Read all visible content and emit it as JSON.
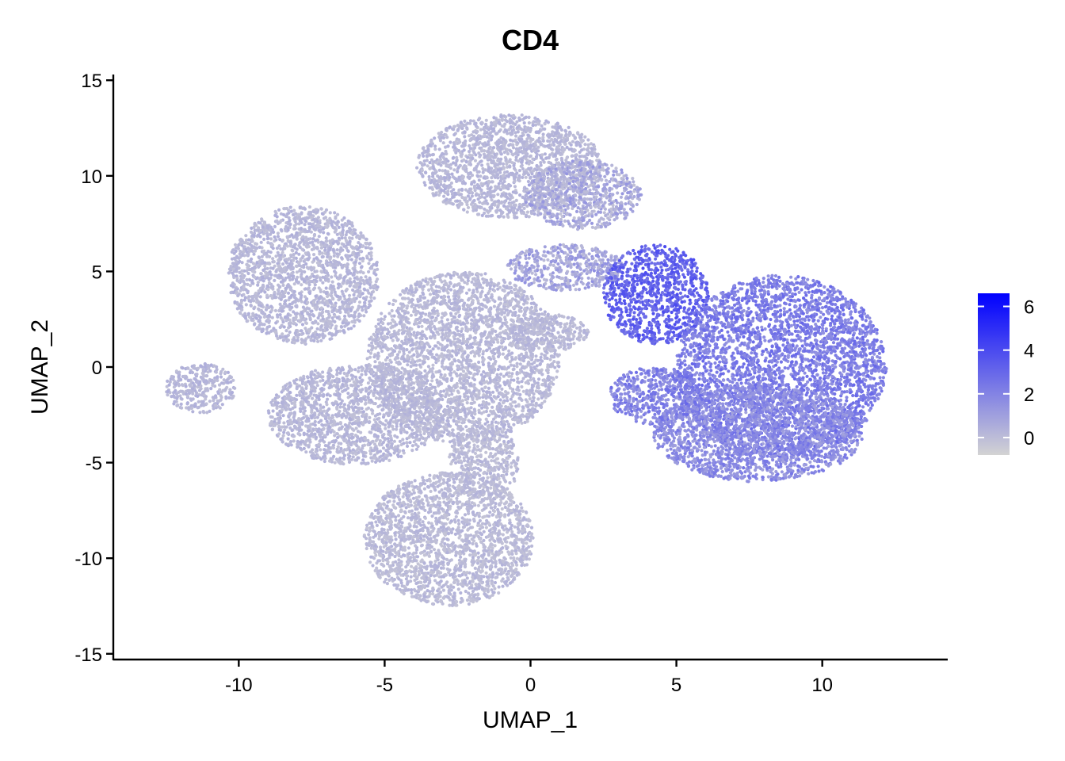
{
  "chart_data": {
    "type": "scatter",
    "title": "CD4",
    "xlabel": "UMAP_1",
    "ylabel": "UMAP_2",
    "xlim": [
      -14.3,
      14.3
    ],
    "ylim": [
      -15.3,
      15.3
    ],
    "x_ticks": [
      -10,
      -5,
      0,
      5,
      10
    ],
    "x_tick_labels": [
      "-10",
      "-5",
      "0",
      "5",
      "10"
    ],
    "y_ticks": [
      -15,
      -10,
      -5,
      0,
      5,
      10,
      15
    ],
    "y_tick_labels": [
      "-15",
      "-10",
      "-5",
      "0",
      "5",
      "10",
      "15"
    ],
    "grid": false,
    "legend": {
      "placement": "right",
      "type": "colorbar",
      "range": [
        -0.8,
        6.6
      ],
      "ticks": [
        0,
        2,
        4,
        6
      ],
      "tick_labels": [
        "0",
        "2",
        "4",
        "6"
      ],
      "color_low": "#d3d3d3",
      "color_high": "#0000ff"
    },
    "clusters": [
      {
        "name": "top-center",
        "cx": -0.7,
        "cy": 10.5,
        "rx": 3.2,
        "ry": 2.7,
        "expr": 0.15
      },
      {
        "name": "top-upper-right",
        "cx": 1.8,
        "cy": 9.0,
        "rx": 2.0,
        "ry": 1.8,
        "expr": 0.6
      },
      {
        "name": "upper-left-lobe",
        "cx": -7.8,
        "cy": 4.8,
        "rx": 2.6,
        "ry": 3.6,
        "expr": 0.15
      },
      {
        "name": "center-body",
        "cx": -2.3,
        "cy": 0.5,
        "rx": 3.3,
        "ry": 4.5,
        "expr": 0.1
      },
      {
        "name": "left-mid",
        "cx": -6.0,
        "cy": -2.5,
        "rx": 3.0,
        "ry": 2.6,
        "expr": 0.15
      },
      {
        "name": "far-left-island",
        "cx": -11.3,
        "cy": -1.1,
        "rx": 1.2,
        "ry": 1.3,
        "expr": 0.2
      },
      {
        "name": "bottom-lobe",
        "cx": -2.8,
        "cy": -9.0,
        "rx": 2.9,
        "ry": 3.5,
        "expr": 0.05
      },
      {
        "name": "bottom-stalk",
        "cx": -1.6,
        "cy": -5.0,
        "rx": 1.2,
        "ry": 2.0,
        "expr": 0.05
      },
      {
        "name": "center-small-blob",
        "cx": 0.6,
        "cy": 1.8,
        "rx": 1.4,
        "ry": 1.0,
        "expr": 0.1
      },
      {
        "name": "bridge",
        "cx": 1.2,
        "cy": 5.2,
        "rx": 2.0,
        "ry": 1.2,
        "expr": 0.8
      },
      {
        "name": "cd4-dense",
        "cx": 4.3,
        "cy": 3.8,
        "rx": 1.8,
        "ry": 2.6,
        "expr": 3.2
      },
      {
        "name": "cd4-main",
        "cx": 8.6,
        "cy": 0.0,
        "rx": 3.6,
        "ry": 4.8,
        "expr": 2.2
      },
      {
        "name": "cd4-main-lower",
        "cx": 7.8,
        "cy": -3.5,
        "rx": 3.6,
        "ry": 2.5,
        "expr": 1.7
      },
      {
        "name": "cd4-left-tail",
        "cx": 4.3,
        "cy": -1.5,
        "rx": 1.6,
        "ry": 1.5,
        "expr": 2.0
      }
    ]
  }
}
